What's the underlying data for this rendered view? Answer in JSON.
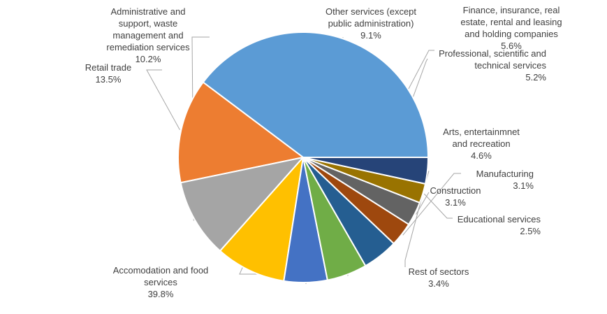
{
  "chart_data": {
    "type": "pie",
    "title": "",
    "slices": [
      {
        "name": "Accomodation and food\nservices",
        "value": 39.8,
        "value_label": "39.8%",
        "color": "#5B9BD5"
      },
      {
        "name": "Retail trade",
        "value": 13.5,
        "value_label": "13.5%",
        "color": "#ED7D31"
      },
      {
        "name": "Administrative and\nsupport, waste\nmanagement and\nremediation services",
        "value": 10.2,
        "value_label": "10.2%",
        "color": "#A5A5A5"
      },
      {
        "name": "Other services (except\npublic administration)",
        "value": 9.1,
        "value_label": "9.1%",
        "color": "#FFC000"
      },
      {
        "name": "Finance, insurance, real\nestate, rental and leasing\nand holding companies",
        "value": 5.6,
        "value_label": "5.6%",
        "color": "#4472C4"
      },
      {
        "name": "Professional, scientific and\ntechnical services",
        "value": 5.2,
        "value_label": "5.2%",
        "color": "#70AD47"
      },
      {
        "name": "Arts, entertainmnet\nand recreation",
        "value": 4.6,
        "value_label": "4.6%",
        "color": "#255E91"
      },
      {
        "name": "Manufacturing",
        "value": 3.1,
        "value_label": "3.1%",
        "color": "#9E480E"
      },
      {
        "name": "Construction",
        "value": 3.1,
        "value_label": "3.1%",
        "color": "#636363"
      },
      {
        "name": "Educational services",
        "value": 2.5,
        "value_label": "2.5%",
        "color": "#997300"
      },
      {
        "name": "Rest of sectors",
        "value": 3.4,
        "value_label": "3.4%",
        "color": "#264478"
      }
    ],
    "legend": "none",
    "slice_order": "counterclockwise from the right (3 o'clock), starting with Accomodation and food services"
  }
}
